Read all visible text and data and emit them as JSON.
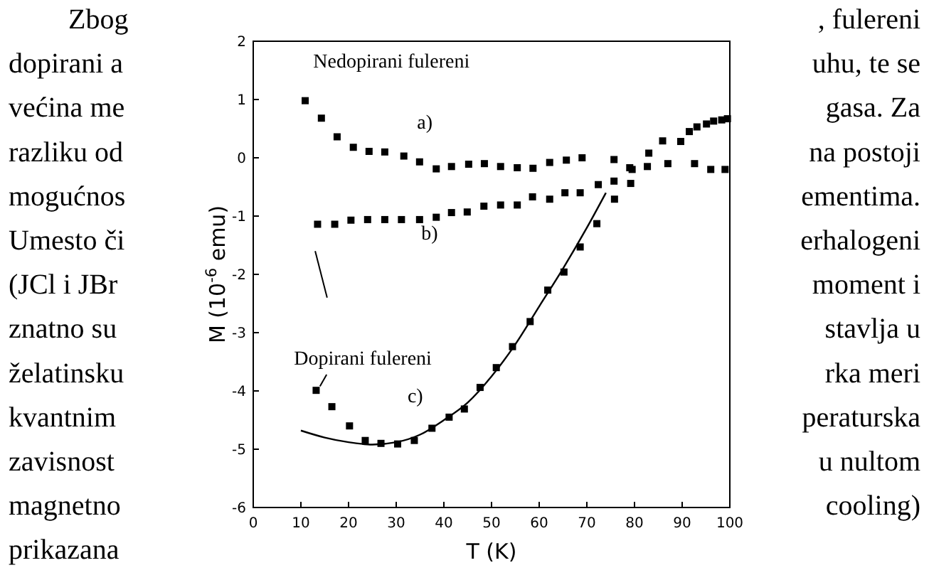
{
  "chart_data": {
    "type": "scatter",
    "xlabel": "T (K)",
    "ylabel": "M (10$^{-6}$ emu)",
    "xlim": [
      0,
      100
    ],
    "xticks": [
      0,
      10,
      20,
      30,
      40,
      50,
      60,
      70,
      80,
      90,
      100
    ],
    "ylim": [
      -6,
      2
    ],
    "yticks": [
      -6,
      -5,
      -4,
      -3,
      -2,
      -1,
      0,
      1,
      2
    ],
    "grid": false,
    "marker": "square",
    "series": [
      {
        "color": "#000000",
        "x": [
          10.9,
          14.3,
          17.6,
          21,
          24.3,
          27.6,
          31.6,
          34.9,
          38.4,
          41.6,
          45.2,
          48.5,
          51.9,
          55.4,
          58.7,
          62.2,
          65.7,
          69,
          75.7,
          79,
          82.7,
          87,
          92.6,
          96,
          99
        ],
        "values": [
          0.98,
          0.68,
          0.36,
          0.18,
          0.11,
          0.1,
          0.03,
          -0.07,
          -0.19,
          -0.15,
          -0.11,
          -0.1,
          -0.15,
          -0.17,
          -0.18,
          -0.08,
          -0.04,
          0,
          -0.03,
          -0.17,
          -0.15,
          -0.1,
          -0.1,
          -0.2,
          -0.2
        ]
      },
      {
        "color": "#000000",
        "x": [
          13.5,
          17.1,
          20.5,
          24,
          27.6,
          31.1,
          34.9,
          38.4,
          41.6,
          44.9,
          48.4,
          51.9,
          55.4,
          58.6,
          62.2,
          65.4,
          68.6,
          72.4,
          75.7,
          79.2,
          83,
          89.7,
          93.1,
          96.6,
          99.5
        ],
        "values": [
          -1.14,
          -1.14,
          -1.07,
          -1.06,
          -1.06,
          -1.06,
          -1.06,
          -1.02,
          -0.94,
          -0.93,
          -0.83,
          -0.81,
          -0.81,
          -0.67,
          -0.71,
          -0.6,
          -0.6,
          -0.46,
          -0.4,
          -0.44,
          0.08,
          0.28,
          0.53,
          0.63,
          0.67
        ]
      },
      {
        "color": "#000000",
        "x": [
          13.2,
          16.5,
          20.2,
          23.5,
          26.8,
          30.3,
          33.8,
          37.5,
          41.1,
          44.3,
          47.6,
          51,
          54.4,
          58.1,
          61.8,
          65.2,
          68.6,
          72.1,
          75.8,
          79.5,
          85.9,
          91.5,
          95.1,
          98.3
        ],
        "values": [
          -3.99,
          -4.27,
          -4.6,
          -4.85,
          -4.9,
          -4.91,
          -4.85,
          -4.64,
          -4.45,
          -4.31,
          -3.94,
          -3.6,
          -3.24,
          -2.81,
          -2.27,
          -1.96,
          -1.53,
          -1.13,
          -0.71,
          -0.2,
          0.29,
          0.45,
          0.58,
          0.65
        ]
      },
      {
        "type": "line",
        "marker": "none",
        "color": "#000000",
        "x": [
          10,
          15,
          20,
          25,
          30,
          35,
          40,
          45,
          50,
          55,
          60,
          65,
          70,
          74
        ],
        "values": [
          -4.68,
          -4.8,
          -4.88,
          -4.92,
          -4.88,
          -4.75,
          -4.5,
          -4.2,
          -3.75,
          -3.2,
          -2.55,
          -1.9,
          -1.2,
          -0.6
        ]
      }
    ],
    "annotations": [
      "Zbog",
      ", fulereni",
      "dopirani a",
      "uhu, te se",
      "većina me",
      "gasa. Za",
      "razliku od",
      "na postoji",
      "mogućnos",
      "ementima.",
      "Umesto či",
      "erhalogeni",
      "(JCl i JBr",
      "moment i",
      "znatno su",
      "stavlja u",
      "želatinsku",
      "rka meri",
      "kvantnim",
      "peraturska",
      "zavisnost",
      "u nultom",
      "magnetno",
      "cooling)",
      "prikazana",
      "Nedopirani fulereni",
      "a)",
      "b)",
      "c)",
      "Dopirani fulereni"
    ]
  }
}
